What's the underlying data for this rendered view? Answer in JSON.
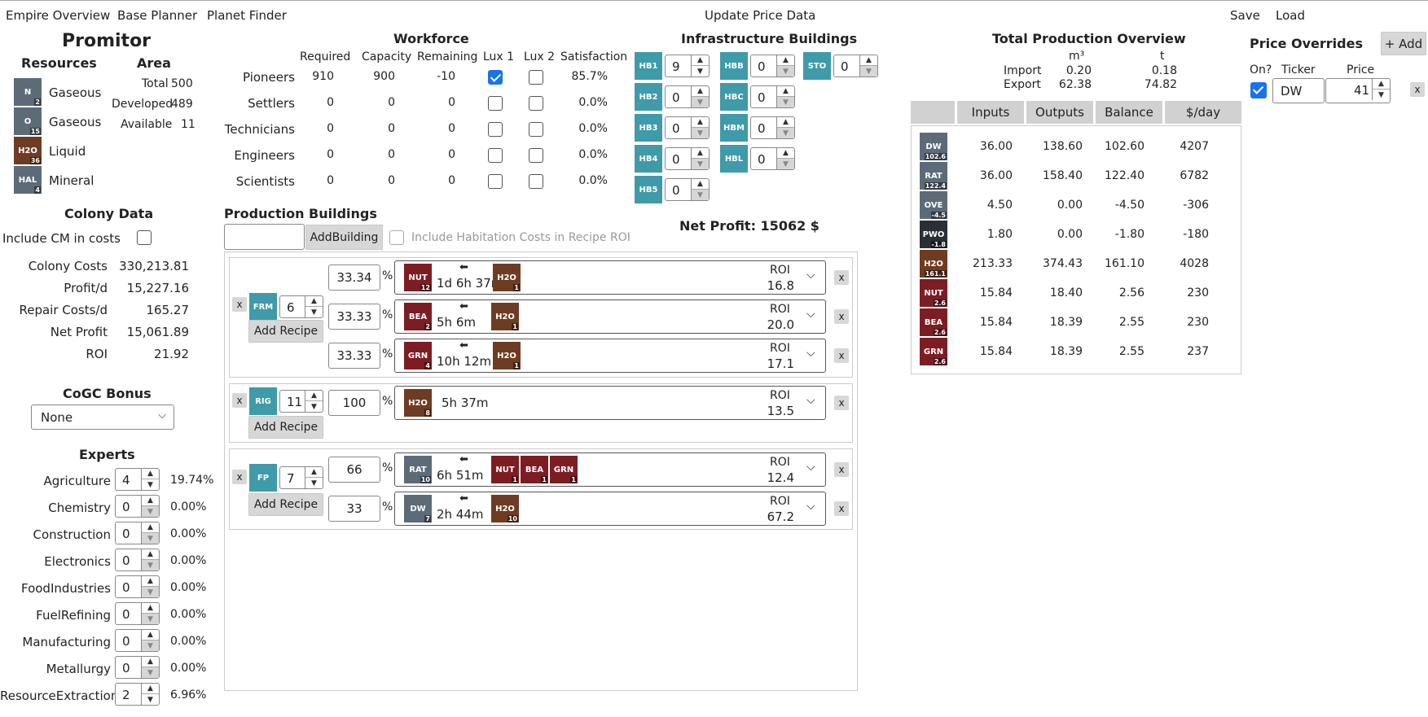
{
  "nav": {
    "empire": "Empire Overview",
    "base": "Base Planner",
    "finder": "Planet Finder",
    "update": "Update Price Data",
    "save": "Save",
    "load": "Load"
  },
  "planet": {
    "name": "Promitor",
    "resources_title": "Resources",
    "area_title": "Area",
    "resources": [
      {
        "ticker": "N",
        "sub": "2",
        "type": "Gaseous",
        "color": "gray"
      },
      {
        "ticker": "O",
        "sub": "15",
        "type": "Gaseous",
        "color": "gray"
      },
      {
        "ticker": "H2O",
        "sub": "36",
        "type": "Liquid",
        "color": "brown"
      },
      {
        "ticker": "HAL",
        "sub": "4",
        "type": "Mineral",
        "color": "gray"
      }
    ],
    "area": {
      "total_label": "Total",
      "total": "500",
      "developed_label": "Developed",
      "developed": "489",
      "available_label": "Available",
      "available": "11"
    }
  },
  "colony": {
    "title": "Colony Data",
    "include_cm": "Include CM in costs",
    "rows": [
      {
        "label": "Colony Costs",
        "value": "330,213.81"
      },
      {
        "label": "Profit/d",
        "value": "15,227.16"
      },
      {
        "label": "Repair Costs/d",
        "value": "165.27"
      },
      {
        "label": "Net Profit",
        "value": "15,061.89"
      },
      {
        "label": "ROI",
        "value": "21.92"
      }
    ]
  },
  "cogc": {
    "title": "CoGC Bonus",
    "selected": "None"
  },
  "experts": {
    "title": "Experts",
    "rows": [
      {
        "label": "Agriculture",
        "value": "4",
        "pct": "19.74%"
      },
      {
        "label": "Chemistry",
        "value": "0",
        "pct": "0.00%"
      },
      {
        "label": "Construction",
        "value": "0",
        "pct": "0.00%"
      },
      {
        "label": "Electronics",
        "value": "0",
        "pct": "0.00%"
      },
      {
        "label": "FoodIndustries",
        "value": "0",
        "pct": "0.00%"
      },
      {
        "label": "FuelRefining",
        "value": "0",
        "pct": "0.00%"
      },
      {
        "label": "Manufacturing",
        "value": "0",
        "pct": "0.00%"
      },
      {
        "label": "Metallurgy",
        "value": "0",
        "pct": "0.00%"
      },
      {
        "label": "ResourceExtraction",
        "value": "2",
        "pct": "6.96%"
      }
    ]
  },
  "workforce": {
    "title": "Workforce",
    "headers": [
      "Required",
      "Capacity",
      "Remaining",
      "Lux 1",
      "Lux 2",
      "Satisfaction"
    ],
    "rows": [
      {
        "name": "Pioneers",
        "required": "910",
        "capacity": "900",
        "remaining": "-10",
        "lux1": true,
        "lux2": false,
        "sat": "85.7%"
      },
      {
        "name": "Settlers",
        "required": "0",
        "capacity": "0",
        "remaining": "0",
        "lux1": false,
        "lux2": false,
        "sat": "0.0%"
      },
      {
        "name": "Technicians",
        "required": "0",
        "capacity": "0",
        "remaining": "0",
        "lux1": false,
        "lux2": false,
        "sat": "0.0%"
      },
      {
        "name": "Engineers",
        "required": "0",
        "capacity": "0",
        "remaining": "0",
        "lux1": false,
        "lux2": false,
        "sat": "0.0%"
      },
      {
        "name": "Scientists",
        "required": "0",
        "capacity": "0",
        "remaining": "0",
        "lux1": false,
        "lux2": false,
        "sat": "0.0%"
      }
    ]
  },
  "infra": {
    "title": "Infrastructure Buildings",
    "buildings": [
      {
        "t": "HB1",
        "v": "9"
      },
      {
        "t": "HB2",
        "v": "0"
      },
      {
        "t": "HB3",
        "v": "0"
      },
      {
        "t": "HB4",
        "v": "0"
      },
      {
        "t": "HB5",
        "v": "0"
      },
      {
        "t": "HBB",
        "v": "0"
      },
      {
        "t": "HBC",
        "v": "0"
      },
      {
        "t": "HBM",
        "v": "0"
      },
      {
        "t": "HBL",
        "v": "0"
      },
      {
        "t": "STO",
        "v": "0"
      }
    ]
  },
  "net_profit": "Net Profit: 15062 $",
  "production": {
    "title": "Production Buildings",
    "add_building": "AddBuilding",
    "include_hab": "Include Habitation Costs in Recipe ROI",
    "add_recipe": "Add Recipe",
    "roi_label": "ROI",
    "x": "x",
    "pct_sign": "%",
    "arrow": "⬅",
    "buildings": [
      {
        "ticker": "FRM",
        "count": "6",
        "recipes": [
          {
            "pct": "33.34",
            "outputs": [
              {
                "t": "NUT",
                "s": "12",
                "c": "red"
              }
            ],
            "time": "1d 6h 37m",
            "inputs": [
              {
                "t": "H2O",
                "s": "1",
                "c": "brown"
              }
            ],
            "roi": "16.8"
          },
          {
            "pct": "33.33",
            "outputs": [
              {
                "t": "BEA",
                "s": "2",
                "c": "red"
              }
            ],
            "time": "5h 6m",
            "inputs": [
              {
                "t": "H2O",
                "s": "1",
                "c": "brown"
              }
            ],
            "roi": "20.0"
          },
          {
            "pct": "33.33",
            "outputs": [
              {
                "t": "GRN",
                "s": "4",
                "c": "red"
              }
            ],
            "time": "10h 12m",
            "inputs": [
              {
                "t": "H2O",
                "s": "1",
                "c": "brown"
              }
            ],
            "roi": "17.1"
          }
        ]
      },
      {
        "ticker": "RIG",
        "count": "11",
        "recipes": [
          {
            "pct": "100",
            "outputs": [
              {
                "t": "H2O",
                "s": "8",
                "c": "brown"
              }
            ],
            "time": "5h 37m",
            "inputs": [],
            "roi": "13.5"
          }
        ]
      },
      {
        "ticker": "FP",
        "count": "7",
        "recipes": [
          {
            "pct": "66",
            "outputs": [
              {
                "t": "RAT",
                "s": "10",
                "c": "gray"
              }
            ],
            "time": "6h 51m",
            "inputs": [
              {
                "t": "NUT",
                "s": "1",
                "c": "red"
              },
              {
                "t": "BEA",
                "s": "1",
                "c": "red"
              },
              {
                "t": "GRN",
                "s": "1",
                "c": "red"
              }
            ],
            "roi": "12.4"
          },
          {
            "pct": "33",
            "outputs": [
              {
                "t": "DW",
                "s": "7",
                "c": "gray"
              }
            ],
            "time": "2h 44m",
            "inputs": [
              {
                "t": "H2O",
                "s": "10",
                "c": "brown"
              }
            ],
            "roi": "67.2"
          }
        ]
      }
    ]
  },
  "overview": {
    "title": "Total Production Overview",
    "unit1": "m³",
    "unit2": "t",
    "import_label": "Import",
    "import_m3": "0.20",
    "import_t": "0.18",
    "export_label": "Export",
    "export_m3": "62.38",
    "export_t": "74.82",
    "headers": [
      "Inputs",
      "Outputs",
      "Balance",
      "$/day"
    ],
    "rows": [
      {
        "t": "DW",
        "s": "102.6",
        "c": "gray",
        "in": "36.00",
        "out": "138.60",
        "bal": "102.60",
        "day": "4207"
      },
      {
        "t": "RAT",
        "s": "122.4",
        "c": "gray",
        "in": "36.00",
        "out": "158.40",
        "bal": "122.40",
        "day": "6782"
      },
      {
        "t": "OVE",
        "s": "-4.5",
        "c": "gray",
        "in": "4.50",
        "out": "0.00",
        "bal": "-4.50",
        "day": "-306"
      },
      {
        "t": "PWO",
        "s": "-1.8",
        "c": "dark",
        "in": "1.80",
        "out": "0.00",
        "bal": "-1.80",
        "day": "-180"
      },
      {
        "t": "H2O",
        "s": "161.1",
        "c": "brown",
        "in": "213.33",
        "out": "374.43",
        "bal": "161.10",
        "day": "4028"
      },
      {
        "t": "NUT",
        "s": "2.6",
        "c": "red",
        "in": "15.84",
        "out": "18.40",
        "bal": "2.56",
        "day": "230"
      },
      {
        "t": "BEA",
        "s": "2.6",
        "c": "red",
        "in": "15.84",
        "out": "18.39",
        "bal": "2.55",
        "day": "230"
      },
      {
        "t": "GRN",
        "s": "2.6",
        "c": "red",
        "in": "15.84",
        "out": "18.39",
        "bal": "2.55",
        "day": "237"
      }
    ]
  },
  "overrides": {
    "title": "Price Overrides",
    "add": "+ Add",
    "on_label": "On?",
    "ticker_label": "Ticker",
    "price_label": "Price",
    "rows": [
      {
        "on": true,
        "ticker": "DW",
        "price": "41"
      }
    ]
  },
  "colors": {
    "teal": "#3f9aa9",
    "gray": "#5d6b78",
    "brown": "#6e3c22",
    "red": "#7c1d24",
    "dark": "#2a2f35",
    "check": "#1a73e8"
  }
}
